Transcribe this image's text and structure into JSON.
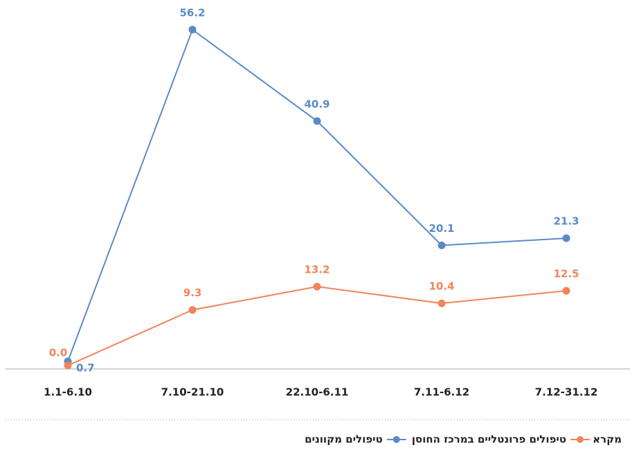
{
  "chart_data": {
    "type": "line",
    "categories": [
      "1.1-6.10",
      "7.10-21.10",
      "22.10-6.11",
      "7.11-6.12",
      "7.12-31.12"
    ],
    "series": [
      {
        "name": "טיפולים מקוונים",
        "color": "#5b8ac9",
        "values": [
          0.7,
          56.2,
          40.9,
          20.1,
          21.3
        ]
      },
      {
        "name": "טיפולים פרונטליים במרכז החוסן",
        "color": "#f0845a",
        "values": [
          0.0,
          9.3,
          13.2,
          10.4,
          12.5
        ],
        "value_labels": [
          "0.0",
          "9.3",
          "13.2",
          "10.4",
          "12.5"
        ]
      }
    ],
    "ylim": [
      0,
      60
    ],
    "legend_title": "מקרא",
    "legend": "bottom-right"
  }
}
